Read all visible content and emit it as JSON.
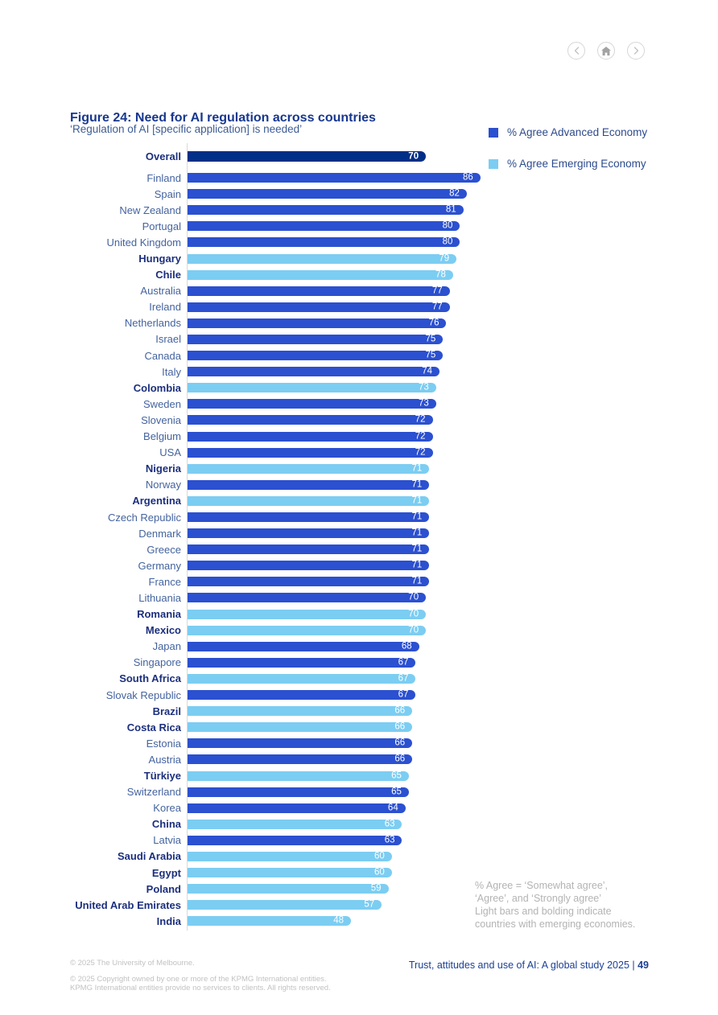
{
  "nav": {
    "buttons": [
      {
        "icon": "chevron-left"
      },
      {
        "icon": "home"
      },
      {
        "icon": "chevron-right"
      }
    ]
  },
  "figure": {
    "title": "Figure 24: Need for AI regulation across countries",
    "subtitle": "‘Regulation of AI [specific application] is needed’"
  },
  "legend": {
    "items": [
      {
        "label": "% Agree Advanced Economy",
        "color": "#2b50d0",
        "key": "advanced"
      },
      {
        "label": "% Agree Emerging Economy",
        "color": "#7ccdf2",
        "key": "emerging"
      }
    ]
  },
  "chart_data": {
    "type": "bar",
    "orientation": "horizontal",
    "title": "Figure 24: Need for AI regulation across countries",
    "xlabel": "",
    "ylabel": "",
    "xlim": [
      0,
      100
    ],
    "grid": false,
    "legend_position": "top-right",
    "value_label_color": "#ffffff",
    "series_colors": {
      "overall": "#002f87",
      "advanced": "#2b50d0",
      "emerging": "#7ccdf2"
    },
    "overall": {
      "label": "Overall",
      "value": 70
    },
    "rows": [
      {
        "country": "Finland",
        "value": 86,
        "economy": "advanced"
      },
      {
        "country": "Spain",
        "value": 82,
        "economy": "advanced"
      },
      {
        "country": "New Zealand",
        "value": 81,
        "economy": "advanced"
      },
      {
        "country": "Portugal",
        "value": 80,
        "economy": "advanced"
      },
      {
        "country": "United Kingdom",
        "value": 80,
        "economy": "advanced"
      },
      {
        "country": "Hungary",
        "value": 79,
        "economy": "emerging"
      },
      {
        "country": "Chile",
        "value": 78,
        "economy": "emerging"
      },
      {
        "country": "Australia",
        "value": 77,
        "economy": "advanced"
      },
      {
        "country": "Ireland",
        "value": 77,
        "economy": "advanced"
      },
      {
        "country": "Netherlands",
        "value": 76,
        "economy": "advanced"
      },
      {
        "country": "Israel",
        "value": 75,
        "economy": "advanced"
      },
      {
        "country": "Canada",
        "value": 75,
        "economy": "advanced"
      },
      {
        "country": "Italy",
        "value": 74,
        "economy": "advanced"
      },
      {
        "country": "Colombia",
        "value": 73,
        "economy": "emerging"
      },
      {
        "country": "Sweden",
        "value": 73,
        "economy": "advanced"
      },
      {
        "country": "Slovenia",
        "value": 72,
        "economy": "advanced"
      },
      {
        "country": "Belgium",
        "value": 72,
        "economy": "advanced"
      },
      {
        "country": "USA",
        "value": 72,
        "economy": "advanced"
      },
      {
        "country": "Nigeria",
        "value": 71,
        "economy": "emerging"
      },
      {
        "country": "Norway",
        "value": 71,
        "economy": "advanced"
      },
      {
        "country": "Argentina",
        "value": 71,
        "economy": "emerging"
      },
      {
        "country": "Czech Republic",
        "value": 71,
        "economy": "advanced"
      },
      {
        "country": "Denmark",
        "value": 71,
        "economy": "advanced"
      },
      {
        "country": "Greece",
        "value": 71,
        "economy": "advanced"
      },
      {
        "country": "Germany",
        "value": 71,
        "economy": "advanced"
      },
      {
        "country": "France",
        "value": 71,
        "economy": "advanced"
      },
      {
        "country": "Lithuania",
        "value": 70,
        "economy": "advanced"
      },
      {
        "country": "Romania",
        "value": 70,
        "economy": "emerging"
      },
      {
        "country": "Mexico",
        "value": 70,
        "economy": "emerging"
      },
      {
        "country": "Japan",
        "value": 68,
        "economy": "advanced"
      },
      {
        "country": "Singapore",
        "value": 67,
        "economy": "advanced"
      },
      {
        "country": "South Africa",
        "value": 67,
        "economy": "emerging"
      },
      {
        "country": "Slovak Republic",
        "value": 67,
        "economy": "advanced"
      },
      {
        "country": "Brazil",
        "value": 66,
        "economy": "emerging"
      },
      {
        "country": "Costa Rica",
        "value": 66,
        "economy": "emerging"
      },
      {
        "country": "Estonia",
        "value": 66,
        "economy": "advanced"
      },
      {
        "country": "Austria",
        "value": 66,
        "economy": "advanced"
      },
      {
        "country": "Türkiye",
        "value": 65,
        "economy": "emerging"
      },
      {
        "country": "Switzerland",
        "value": 65,
        "economy": "advanced"
      },
      {
        "country": "Korea",
        "value": 64,
        "economy": "advanced"
      },
      {
        "country": "China",
        "value": 63,
        "economy": "emerging"
      },
      {
        "country": "Latvia",
        "value": 63,
        "economy": "advanced"
      },
      {
        "country": "Saudi Arabia",
        "value": 60,
        "economy": "emerging"
      },
      {
        "country": "Egypt",
        "value": 60,
        "economy": "emerging"
      },
      {
        "country": "Poland",
        "value": 59,
        "economy": "emerging"
      },
      {
        "country": "United Arab Emirates",
        "value": 57,
        "economy": "emerging"
      },
      {
        "country": "India",
        "value": 48,
        "economy": "emerging"
      }
    ]
  },
  "note": {
    "lines": [
      "% Agree = ‘Somewhat agree’,",
      "‘Agree’, and ‘Strongly agree’",
      "Light bars and bolding indicate",
      "countries with emerging economies."
    ]
  },
  "footer": {
    "left_line1": "© 2025 The University of Melbourne.",
    "left_line2a": "© 2025 Copyright owned by one or more of the KPMG International entities.",
    "left_line2b": "KPMG International entities provide no services to clients. All rights reserved.",
    "right_text": "Trust, attitudes and use of AI: A global study 2025 | ",
    "right_page": "49"
  }
}
